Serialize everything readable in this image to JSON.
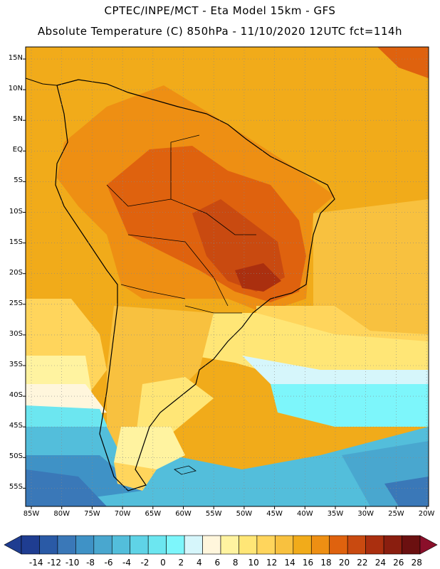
{
  "header": {
    "line1": "CPTEC/INPE/MCT -  Eta Model 15km - GFS",
    "line2": "Absolute Temperature (C) 850hPa - 11/10/2020 12UTC fct=114h"
  },
  "lat_labels": [
    "15N",
    "10N",
    "5N",
    "EQ",
    "5S",
    "10S",
    "15S",
    "20S",
    "25S",
    "30S",
    "35S",
    "40S",
    "45S",
    "50S",
    "55S"
  ],
  "lon_labels": [
    "85W",
    "80W",
    "75W",
    "70W",
    "65W",
    "60W",
    "55W",
    "50W",
    "45W",
    "40W",
    "35W",
    "30W",
    "25W",
    "20W"
  ],
  "colorbar": {
    "labels": [
      "-14",
      "-12",
      "-10",
      "-8",
      "-6",
      "-4",
      "-2",
      "0",
      "2",
      "4",
      "6",
      "8",
      "10",
      "12",
      "14",
      "16",
      "18",
      "20",
      "22",
      "24",
      "26",
      "28"
    ],
    "colors": [
      "#1f3d91",
      "#2a5aa6",
      "#3a78b8",
      "#3f92c6",
      "#49a7cf",
      "#53bedb",
      "#5fd3e6",
      "#6ce6f0",
      "#7df6fb",
      "#d6f6fb",
      "#fff6dc",
      "#fff3a0",
      "#ffe676",
      "#ffd55c",
      "#f8c13f",
      "#f1ab1a",
      "#ee8f13",
      "#df620e",
      "#c94a10",
      "#aa2f0f",
      "#8a1e0f",
      "#6b1010"
    ]
  }
}
